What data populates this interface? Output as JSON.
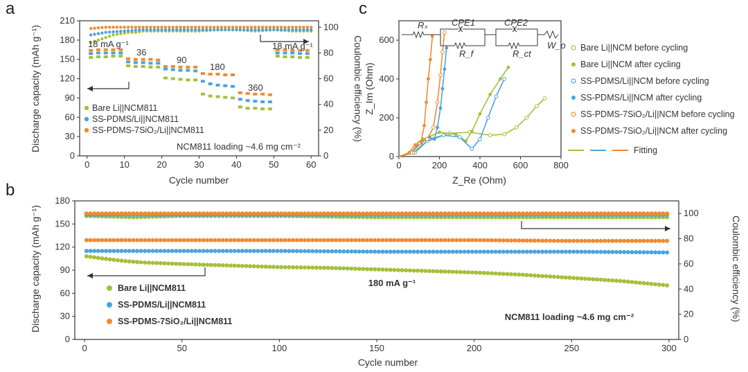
{
  "panel_labels": {
    "a": "a",
    "b": "b",
    "c": "c"
  },
  "colors": {
    "bare": "#a3c03a",
    "pdms": "#4aa3df",
    "sio2": "#f28a2e",
    "axis": "#333333"
  },
  "chart_data": [
    {
      "id": "a",
      "type": "scatter",
      "xlabel": "Cycle number",
      "ylabel": "Discharge capacity (mAh g⁻¹)",
      "y2label": "Coulombic efficiency (%)",
      "xlim": [
        -2,
        62
      ],
      "ylim": [
        0,
        210
      ],
      "y2lim": [
        0,
        105
      ],
      "xticks": [
        0,
        10,
        20,
        30,
        40,
        50,
        60
      ],
      "yticks": [
        0,
        30,
        60,
        90,
        120,
        150,
        180,
        210
      ],
      "y2ticks": [
        0,
        20,
        40,
        60,
        80,
        100
      ],
      "rate_labels": [
        "18 mA g⁻¹",
        "36",
        "90",
        "180",
        "360",
        "18 mA g⁻¹"
      ],
      "annotation": "NCM811 loading ~4.6 mg cm⁻²",
      "series": [
        {
          "name": "Bare Li||NCM811",
          "key": "bare",
          "capacity": [
            [
              1,
              153
            ],
            [
              3,
              154
            ],
            [
              5,
              154
            ],
            [
              7,
              155
            ],
            [
              9,
              155
            ],
            [
              11,
              140
            ],
            [
              13,
              139
            ],
            [
              15,
              139
            ],
            [
              17,
              138
            ],
            [
              19,
              138
            ],
            [
              21,
              121
            ],
            [
              23,
              120
            ],
            [
              25,
              119
            ],
            [
              27,
              118
            ],
            [
              29,
              118
            ],
            [
              31,
              96
            ],
            [
              33,
              93
            ],
            [
              35,
              92
            ],
            [
              37,
              91
            ],
            [
              39,
              90
            ],
            [
              41,
              76
            ],
            [
              43,
              74
            ],
            [
              45,
              74
            ],
            [
              47,
              73
            ],
            [
              49,
              73
            ],
            [
              51,
              155
            ],
            [
              53,
              154
            ],
            [
              55,
              154
            ],
            [
              57,
              153
            ],
            [
              59,
              153
            ]
          ],
          "ce": [
            [
              1,
              88
            ],
            [
              3,
              90
            ],
            [
              5,
              92
            ],
            [
              7,
              94
            ],
            [
              9,
              95
            ],
            [
              11,
              96
            ],
            [
              13,
              96
            ],
            [
              15,
              97
            ],
            [
              17,
              97
            ],
            [
              19,
              97
            ],
            [
              21,
              97
            ],
            [
              25,
              97
            ],
            [
              30,
              97
            ],
            [
              35,
              98
            ],
            [
              40,
              98
            ],
            [
              45,
              97
            ],
            [
              50,
              98
            ],
            [
              55,
              97
            ],
            [
              60,
              97
            ]
          ]
        },
        {
          "name": "SS-PDMS/Li||NCM811",
          "key": "pdms",
          "capacity": [
            [
              1,
              159
            ],
            [
              3,
              160
            ],
            [
              5,
              160
            ],
            [
              7,
              160
            ],
            [
              9,
              160
            ],
            [
              11,
              146
            ],
            [
              13,
              145
            ],
            [
              15,
              145
            ],
            [
              17,
              144
            ],
            [
              19,
              144
            ],
            [
              21,
              135
            ],
            [
              23,
              134
            ],
            [
              25,
              133
            ],
            [
              27,
              133
            ],
            [
              29,
              132
            ],
            [
              31,
              116
            ],
            [
              33,
              112
            ],
            [
              35,
              110
            ],
            [
              37,
              109
            ],
            [
              39,
              108
            ],
            [
              41,
              88
            ],
            [
              43,
              86
            ],
            [
              45,
              85
            ],
            [
              47,
              84
            ],
            [
              49,
              84
            ],
            [
              51,
              160
            ],
            [
              53,
              160
            ],
            [
              55,
              160
            ],
            [
              57,
              159
            ],
            [
              59,
              159
            ]
          ],
          "ce": [
            [
              1,
              94
            ],
            [
              5,
              96
            ],
            [
              10,
              97
            ],
            [
              15,
              98
            ],
            [
              20,
              98
            ],
            [
              25,
              98
            ],
            [
              30,
              98
            ],
            [
              35,
              98
            ],
            [
              40,
              98
            ],
            [
              45,
              98
            ],
            [
              50,
              98
            ],
            [
              55,
              98
            ],
            [
              60,
              98
            ]
          ]
        },
        {
          "name": "SS-PDMS-7SiO₂/Li||NCM811",
          "key": "sio2",
          "capacity": [
            [
              1,
              164
            ],
            [
              3,
              165
            ],
            [
              5,
              165
            ],
            [
              7,
              165
            ],
            [
              9,
              165
            ],
            [
              11,
              151
            ],
            [
              13,
              150
            ],
            [
              15,
              150
            ],
            [
              17,
              150
            ],
            [
              19,
              149
            ],
            [
              21,
              139
            ],
            [
              23,
              139
            ],
            [
              25,
              138
            ],
            [
              27,
              138
            ],
            [
              29,
              138
            ],
            [
              31,
              128
            ],
            [
              33,
              127
            ],
            [
              35,
              127
            ],
            [
              37,
              126
            ],
            [
              39,
              126
            ],
            [
              41,
              98
            ],
            [
              43,
              97
            ],
            [
              45,
              96
            ],
            [
              47,
              96
            ],
            [
              49,
              95
            ],
            [
              51,
              165
            ],
            [
              53,
              165
            ],
            [
              55,
              164
            ],
            [
              57,
              164
            ],
            [
              59,
              164
            ]
          ],
          "ce": [
            [
              1,
              99
            ],
            [
              5,
              100
            ],
            [
              10,
              100
            ],
            [
              15,
              100
            ],
            [
              20,
              100
            ],
            [
              25,
              100
            ],
            [
              30,
              100
            ],
            [
              35,
              100
            ],
            [
              40,
              100
            ],
            [
              45,
              100
            ],
            [
              50,
              100
            ],
            [
              55,
              100
            ],
            [
              60,
              100
            ]
          ]
        }
      ]
    },
    {
      "id": "c",
      "type": "scatter",
      "xlabel": "Z_Re (Ohm)",
      "ylabel": "Z_Im (Ohm)",
      "xlim": [
        0,
        800
      ],
      "ylim": [
        0,
        700
      ],
      "xticks": [
        0,
        200,
        400,
        600,
        800
      ],
      "yticks": [
        0,
        200,
        400,
        600
      ],
      "circuit_labels": [
        "Rₛ",
        "CPE1",
        "CPE2",
        "R_f",
        "R_ct",
        "W_o"
      ],
      "legend_fit": "Fitting",
      "series": [
        {
          "name": "Bare Li||NCM before cycling",
          "key": "bare",
          "marker": "open",
          "points": [
            [
              80,
              20
            ],
            [
              150,
              90
            ],
            [
              250,
              120
            ],
            [
              350,
              125
            ],
            [
              450,
              110
            ],
            [
              520,
              115
            ],
            [
              580,
              150
            ],
            [
              630,
              200
            ],
            [
              680,
              260
            ],
            [
              720,
              300
            ]
          ]
        },
        {
          "name": "Bare Li||NCM after cycling",
          "key": "bare",
          "marker": "filled",
          "points": [
            [
              60,
              20
            ],
            [
              120,
              90
            ],
            [
              200,
              125
            ],
            [
              280,
              115
            ],
            [
              330,
              80
            ],
            [
              360,
              130
            ],
            [
              400,
              220
            ],
            [
              450,
              320
            ],
            [
              500,
              400
            ],
            [
              540,
              460
            ]
          ]
        },
        {
          "name": "SS-PDMS/Li||NCM before cycling",
          "key": "pdms",
          "marker": "open",
          "points": [
            [
              70,
              20
            ],
            [
              140,
              80
            ],
            [
              220,
              110
            ],
            [
              300,
              100
            ],
            [
              360,
              40
            ],
            [
              400,
              90
            ],
            [
              440,
              200
            ],
            [
              480,
              310
            ],
            [
              520,
              400
            ]
          ]
        },
        {
          "name": "SS-PDMS/Li||NCM after cycling",
          "key": "pdms",
          "marker": "filled",
          "points": [
            [
              60,
              20
            ],
            [
              110,
              70
            ],
            [
              150,
              100
            ],
            [
              175,
              90
            ],
            [
              190,
              150
            ],
            [
              205,
              250
            ],
            [
              215,
              350
            ],
            [
              225,
              450
            ],
            [
              235,
              560
            ]
          ]
        },
        {
          "name": "SS-PDMS-7SiO₂/Li||NCM before cycling",
          "key": "sio2",
          "marker": "open",
          "points": [
            [
              60,
              20
            ],
            [
              100,
              70
            ],
            [
              140,
              90
            ],
            [
              170,
              150
            ],
            [
              190,
              280
            ],
            [
              205,
              420
            ],
            [
              215,
              540
            ],
            [
              225,
              640
            ]
          ]
        },
        {
          "name": "SS-PDMS-7SiO₂/Li||NCM after cycling",
          "key": "sio2",
          "marker": "filled",
          "points": [
            [
              50,
              20
            ],
            [
              80,
              60
            ],
            [
              110,
              80
            ],
            [
              125,
              160
            ],
            [
              135,
              280
            ],
            [
              145,
              400
            ],
            [
              155,
              500
            ],
            [
              165,
              620
            ]
          ]
        }
      ]
    },
    {
      "id": "b",
      "type": "scatter",
      "xlabel": "Cycle number",
      "ylabel": "Discharge capacity (mAh g⁻¹)",
      "y2label": "Coulombic efficiency (%)",
      "xlim": [
        -5,
        305
      ],
      "ylim": [
        0,
        180
      ],
      "y2lim": [
        0,
        110
      ],
      "xticks": [
        0,
        50,
        100,
        150,
        200,
        250,
        300
      ],
      "yticks": [
        0,
        30,
        60,
        90,
        120,
        150,
        180
      ],
      "y2ticks": [
        0,
        20,
        40,
        60,
        80,
        100
      ],
      "rate_label": "180 mA g⁻¹",
      "annotation": "NCM811 loading ~4.6 mg cm⁻²",
      "series": [
        {
          "name": "Bare Li||NCM811",
          "key": "bare",
          "capacity": [
            [
              1,
              108
            ],
            [
              10,
              105
            ],
            [
              20,
              102
            ],
            [
              30,
              100
            ],
            [
              50,
              98
            ],
            [
              75,
              96
            ],
            [
              100,
              94
            ],
            [
              125,
              93
            ],
            [
              150,
              91
            ],
            [
              175,
              89
            ],
            [
              200,
              87
            ],
            [
              225,
              84
            ],
            [
              250,
              80
            ],
            [
              275,
              76
            ],
            [
              300,
              70
            ]
          ],
          "ce": [
            [
              1,
              98
            ],
            [
              25,
              97
            ],
            [
              50,
              98
            ],
            [
              100,
              98
            ],
            [
              150,
              97
            ],
            [
              200,
              97
            ],
            [
              250,
              97
            ],
            [
              300,
              97
            ]
          ]
        },
        {
          "name": "SS-PDMS/Li||NCM811",
          "key": "pdms",
          "capacity": [
            [
              1,
              115
            ],
            [
              50,
              115
            ],
            [
              100,
              115
            ],
            [
              150,
              114
            ],
            [
              200,
              114
            ],
            [
              250,
              114
            ],
            [
              300,
              113
            ]
          ],
          "ce": [
            [
              1,
              99
            ],
            [
              50,
              99
            ],
            [
              100,
              99
            ],
            [
              150,
              99
            ],
            [
              200,
              99
            ],
            [
              250,
              99
            ],
            [
              300,
              99
            ]
          ]
        },
        {
          "name": "SS-PDMS-7SiO₂/Li||NCM811",
          "key": "sio2",
          "capacity": [
            [
              1,
              129
            ],
            [
              50,
              129
            ],
            [
              100,
              129
            ],
            [
              150,
              129
            ],
            [
              200,
              129
            ],
            [
              250,
              128
            ],
            [
              300,
              128
            ]
          ],
          "ce": [
            [
              1,
              100
            ],
            [
              50,
              100
            ],
            [
              100,
              100
            ],
            [
              150,
              100
            ],
            [
              200,
              100
            ],
            [
              250,
              100
            ],
            [
              300,
              100
            ]
          ]
        }
      ]
    }
  ]
}
